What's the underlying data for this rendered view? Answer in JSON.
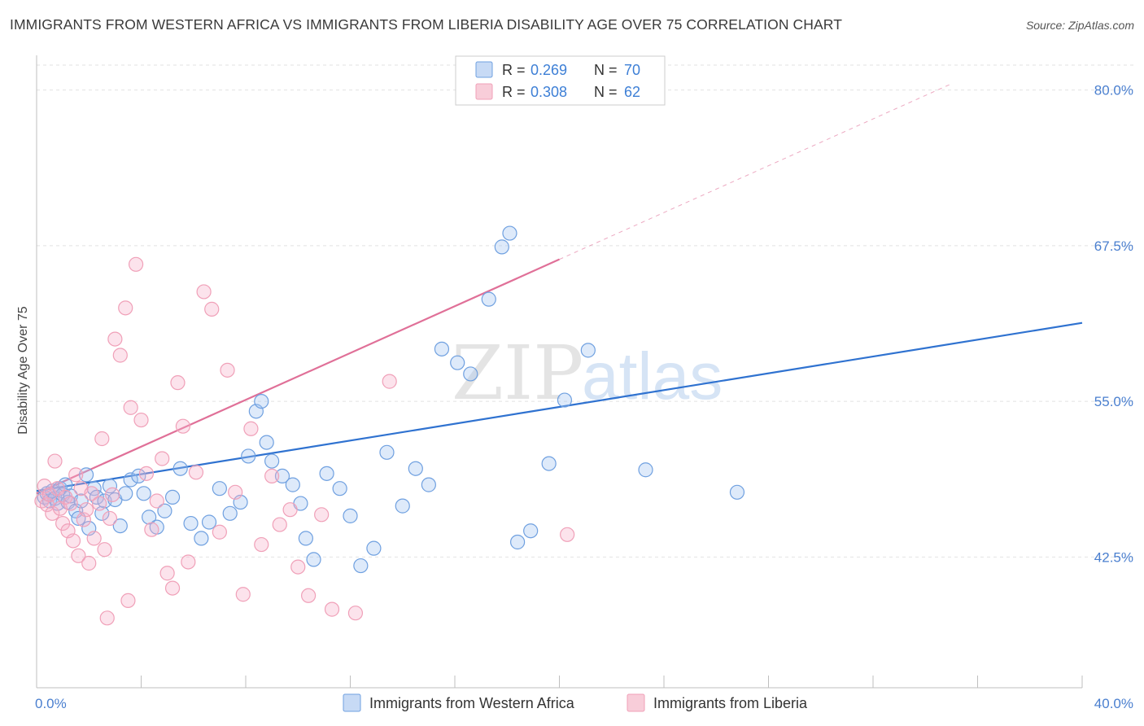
{
  "header": {
    "title": "IMMIGRANTS FROM WESTERN AFRICA VS IMMIGRANTS FROM LIBERIA DISABILITY AGE OVER 75 CORRELATION CHART",
    "source": "Source: ZipAtlas.com"
  },
  "watermark": {
    "zip": "ZIP",
    "atlas": "atlas"
  },
  "legend": {
    "r_label": "R =",
    "n_label": "N =",
    "series": [
      {
        "name": "Immigrants from Western Africa",
        "r": "0.269",
        "n": "70",
        "color": "#6fa0e0"
      },
      {
        "name": "Immigrants from Liberia",
        "r": "0.308",
        "n": "62",
        "color": "#f0a0b8"
      }
    ]
  },
  "chart_data": {
    "type": "scatter",
    "ylabel": "Disability Age Over 75",
    "xlim": [
      0,
      40
    ],
    "ylim": [
      32,
      82
    ],
    "x_tick_labels": [
      "0.0%",
      "40.0%"
    ],
    "y_ticks": [
      42.5,
      55.0,
      67.5,
      80.0
    ],
    "y_tick_labels": [
      "42.5%",
      "55.0%",
      "67.5%",
      "80.0%"
    ],
    "grid": true,
    "legend_position": "top-center",
    "series": [
      {
        "name": "Immigrants from Western Africa",
        "color": "#6fa0e0",
        "line_color": "#2f72d0",
        "trend": {
          "x": [
            0,
            40
          ],
          "y": [
            47.8,
            61.3
          ]
        },
        "points": [
          [
            0.3,
            47.3
          ],
          [
            0.4,
            47.6
          ],
          [
            0.5,
            47.0
          ],
          [
            0.6,
            47.8
          ],
          [
            0.7,
            47.2
          ],
          [
            0.8,
            46.8
          ],
          [
            0.9,
            48.0
          ],
          [
            1.0,
            47.5
          ],
          [
            1.1,
            48.3
          ],
          [
            1.2,
            46.9
          ],
          [
            1.3,
            47.4
          ],
          [
            1.5,
            46.2
          ],
          [
            1.6,
            45.6
          ],
          [
            1.7,
            47.0
          ],
          [
            1.9,
            49.1
          ],
          [
            2.0,
            44.8
          ],
          [
            2.2,
            48.0
          ],
          [
            2.3,
            47.3
          ],
          [
            2.5,
            46.0
          ],
          [
            2.6,
            47.0
          ],
          [
            2.8,
            48.2
          ],
          [
            3.0,
            47.1
          ],
          [
            3.2,
            45.0
          ],
          [
            3.4,
            47.6
          ],
          [
            3.6,
            48.7
          ],
          [
            3.9,
            49.0
          ],
          [
            4.1,
            47.6
          ],
          [
            4.3,
            45.7
          ],
          [
            4.6,
            44.9
          ],
          [
            4.9,
            46.2
          ],
          [
            5.2,
            47.3
          ],
          [
            5.5,
            49.6
          ],
          [
            5.9,
            45.2
          ],
          [
            6.3,
            44.0
          ],
          [
            6.6,
            45.3
          ],
          [
            7.0,
            48.0
          ],
          [
            7.4,
            46.0
          ],
          [
            7.8,
            46.9
          ],
          [
            8.1,
            50.6
          ],
          [
            8.4,
            54.2
          ],
          [
            8.6,
            55.0
          ],
          [
            8.8,
            51.7
          ],
          [
            9.0,
            50.2
          ],
          [
            9.4,
            49.0
          ],
          [
            9.8,
            48.3
          ],
          [
            10.1,
            46.8
          ],
          [
            10.3,
            44.0
          ],
          [
            10.6,
            42.3
          ],
          [
            11.1,
            49.2
          ],
          [
            11.6,
            48.0
          ],
          [
            12.0,
            45.8
          ],
          [
            12.4,
            41.8
          ],
          [
            12.9,
            43.2
          ],
          [
            13.4,
            50.9
          ],
          [
            14.0,
            46.6
          ],
          [
            14.5,
            49.6
          ],
          [
            15.0,
            48.3
          ],
          [
            15.5,
            59.2
          ],
          [
            16.1,
            58.1
          ],
          [
            16.6,
            57.2
          ],
          [
            17.3,
            63.2
          ],
          [
            17.8,
            67.4
          ],
          [
            18.1,
            68.5
          ],
          [
            18.4,
            43.7
          ],
          [
            18.9,
            44.6
          ],
          [
            19.6,
            50.0
          ],
          [
            20.2,
            55.1
          ],
          [
            21.1,
            59.1
          ],
          [
            23.3,
            49.5
          ],
          [
            26.8,
            47.7
          ]
        ]
      },
      {
        "name": "Immigrants from Liberia",
        "color": "#f0a0b8",
        "line_color": "#e07098",
        "trend": {
          "x": [
            0,
            20
          ],
          "y": [
            47.6,
            66.4
          ]
        },
        "dashed_extension": {
          "x": [
            20,
            35
          ],
          "y": [
            66.4,
            80.5
          ]
        },
        "points": [
          [
            0.2,
            47.0
          ],
          [
            0.3,
            48.2
          ],
          [
            0.4,
            46.7
          ],
          [
            0.5,
            47.5
          ],
          [
            0.6,
            46.0
          ],
          [
            0.7,
            50.2
          ],
          [
            0.8,
            48.0
          ],
          [
            0.9,
            46.4
          ],
          [
            1.0,
            45.2
          ],
          [
            1.1,
            47.3
          ],
          [
            1.2,
            44.6
          ],
          [
            1.3,
            46.8
          ],
          [
            1.4,
            43.8
          ],
          [
            1.5,
            49.1
          ],
          [
            1.6,
            42.6
          ],
          [
            1.7,
            48.0
          ],
          [
            1.8,
            45.5
          ],
          [
            1.9,
            46.3
          ],
          [
            2.0,
            42.0
          ],
          [
            2.1,
            47.6
          ],
          [
            2.2,
            44.0
          ],
          [
            2.4,
            46.8
          ],
          [
            2.5,
            52.0
          ],
          [
            2.6,
            43.1
          ],
          [
            2.7,
            37.6
          ],
          [
            2.8,
            45.6
          ],
          [
            2.9,
            47.5
          ],
          [
            3.0,
            60.0
          ],
          [
            3.2,
            58.7
          ],
          [
            3.4,
            62.5
          ],
          [
            3.5,
            39.0
          ],
          [
            3.6,
            54.5
          ],
          [
            3.8,
            66.0
          ],
          [
            4.0,
            53.5
          ],
          [
            4.2,
            49.2
          ],
          [
            4.4,
            44.7
          ],
          [
            4.6,
            47.0
          ],
          [
            4.8,
            50.4
          ],
          [
            5.0,
            41.2
          ],
          [
            5.2,
            40.0
          ],
          [
            5.4,
            56.5
          ],
          [
            5.6,
            53.0
          ],
          [
            5.8,
            42.1
          ],
          [
            6.1,
            49.3
          ],
          [
            6.4,
            63.8
          ],
          [
            6.7,
            62.4
          ],
          [
            7.0,
            44.5
          ],
          [
            7.3,
            57.5
          ],
          [
            7.6,
            47.7
          ],
          [
            7.9,
            39.5
          ],
          [
            8.2,
            52.8
          ],
          [
            8.6,
            43.5
          ],
          [
            9.0,
            49.0
          ],
          [
            9.3,
            45.1
          ],
          [
            9.7,
            46.3
          ],
          [
            10.0,
            41.7
          ],
          [
            10.4,
            39.4
          ],
          [
            10.9,
            45.9
          ],
          [
            11.3,
            38.3
          ],
          [
            12.2,
            38.0
          ],
          [
            13.5,
            56.6
          ],
          [
            20.3,
            44.3
          ]
        ]
      }
    ]
  }
}
